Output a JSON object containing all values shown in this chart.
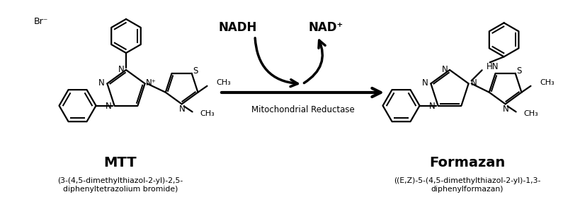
{
  "bg_color": "#ffffff",
  "nadh_label": "NADH",
  "nad_label": "NAD⁺",
  "reaction_label": "Mitochondrial Reductase",
  "mtt_label": "MTT",
  "mtt_sublabel": "(3-(4,5-dimethylthiazol-2-yl)-2,5-\ndiphenyltetrazolium bromide)",
  "formazan_label": "Formazan",
  "formazan_sublabel": "((E,Z)-5-(4,5-dimethylthiazol-2-yl)-1,3-\ndiphenylformazan)",
  "br_label": "Br⁻",
  "lw": 1.6,
  "figsize": [
    7.95,
    2.79
  ],
  "dpi": 100
}
